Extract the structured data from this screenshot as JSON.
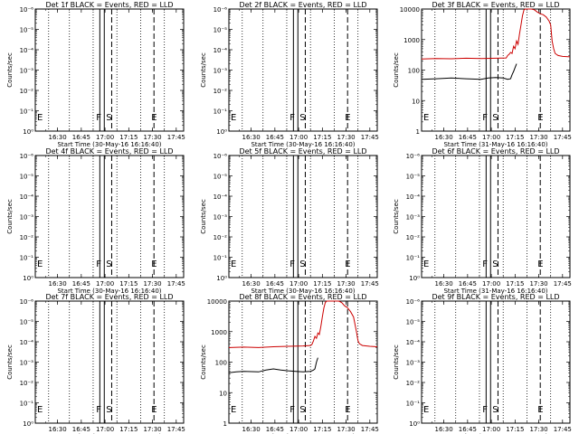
{
  "figure": {
    "background": "#ffffff",
    "event_color": "#000000",
    "lld_color": "#cc0000"
  },
  "chart_data": [
    {
      "type": "line",
      "title": "Det 1f BLACK = Events, RED = LLD",
      "ylabel": "Counts/sec",
      "xlabel": "Start Time (30-May-16 16:16:40)",
      "x_ticks": [
        "16:30",
        "16:45",
        "17:00",
        "17:15",
        "17:30",
        "17:45"
      ],
      "y_ticks": [
        "10⁰",
        "10⁻¹",
        "10⁻²",
        "10⁻³",
        "10⁻⁴",
        "10⁻⁵",
        "10⁻⁶"
      ],
      "y_scale": "log",
      "ylim": [
        1e-06,
        1
      ],
      "markers": {
        "E1": "E",
        "F": "F",
        "S": "S",
        "E2": "E"
      },
      "series": []
    },
    {
      "type": "line",
      "title": "Det 2f BLACK = Events, RED = LLD",
      "ylabel": "Counts/sec",
      "xlabel": "Start Time (30-May-16 16:16:40)",
      "x_ticks": [
        "16:30",
        "16:45",
        "17:00",
        "17:15",
        "17:30",
        "17:45"
      ],
      "y_ticks": [
        "10⁰",
        "10⁻¹",
        "10⁻²",
        "10⁻³",
        "10⁻⁴",
        "10⁻⁵",
        "10⁻⁶"
      ],
      "y_scale": "log",
      "ylim": [
        1e-06,
        1
      ],
      "markers": {
        "E1": "E",
        "F": "F",
        "S": "S",
        "E2": "E"
      },
      "series": []
    },
    {
      "type": "line",
      "title": "Det 3f BLACK = Events, RED = LLD",
      "ylabel": "Counts/sec",
      "xlabel": "Start Time (31-May-16 16:16:40)",
      "x_ticks": [
        "16:30",
        "16:45",
        "17:00",
        "17:15",
        "17:30",
        "17:45"
      ],
      "y_ticks": [
        "1",
        "10",
        "100",
        "1000",
        "10000"
      ],
      "y_scale": "log",
      "ylim": [
        1,
        10000
      ],
      "markers": {
        "E1": "E",
        "F": "F",
        "S": "S",
        "E2": "E"
      },
      "series": [
        {
          "color": "#000000",
          "points": [
            [
              0,
              50
            ],
            [
              10,
              52
            ],
            [
              20,
              55
            ],
            [
              30,
              52
            ],
            [
              40,
              50
            ],
            [
              45,
              55
            ],
            [
              50,
              57
            ],
            [
              55,
              55
            ],
            [
              58,
              50
            ],
            [
              60,
              52
            ],
            [
              61,
              70
            ],
            [
              62,
              90
            ],
            [
              63,
              120
            ],
            [
              64,
              160
            ]
          ]
        },
        {
          "color": "#cc0000",
          "points": [
            [
              0,
              230
            ],
            [
              10,
              240
            ],
            [
              20,
              235
            ],
            [
              30,
              245
            ],
            [
              40,
              240
            ],
            [
              50,
              245
            ],
            [
              57,
              250
            ],
            [
              58,
              300
            ],
            [
              59,
              330
            ],
            [
              60,
              380
            ],
            [
              61,
              350
            ],
            [
              62,
              600
            ],
            [
              63,
              500
            ],
            [
              64,
              900
            ],
            [
              65,
              700
            ],
            [
              66,
              1500
            ],
            [
              67,
              3000
            ],
            [
              68,
              6000
            ],
            [
              69,
              9500
            ],
            [
              70,
              10000
            ],
            [
              72,
              10000
            ],
            [
              74,
              10000
            ],
            [
              76,
              9500
            ],
            [
              78,
              8000
            ],
            [
              80,
              7000
            ],
            [
              82,
              6500
            ],
            [
              84,
              5500
            ],
            [
              86,
              4000
            ],
            [
              87,
              3000
            ],
            [
              88,
              900
            ],
            [
              89,
              500
            ],
            [
              90,
              350
            ],
            [
              92,
              300
            ],
            [
              95,
              280
            ],
            [
              100,
              270
            ]
          ]
        }
      ]
    },
    {
      "type": "line",
      "title": "Det 4f BLACK = Events, RED = LLD",
      "ylabel": "Counts/sec",
      "xlabel": "Start Time (30-May-16 16:16:40)",
      "x_ticks": [
        "16:30",
        "16:45",
        "17:00",
        "17:15",
        "17:30",
        "17:45"
      ],
      "y_ticks": [
        "10⁰",
        "10⁻¹",
        "10⁻²",
        "10⁻³",
        "10⁻⁴",
        "10⁻⁵",
        "10⁻⁶"
      ],
      "y_scale": "log",
      "ylim": [
        1e-06,
        1
      ],
      "markers": {
        "E1": "E",
        "F": "F",
        "S": "S",
        "E2": "E"
      },
      "series": []
    },
    {
      "type": "line",
      "title": "Det 5f BLACK = Events, RED = LLD",
      "ylabel": "Counts/sec",
      "xlabel": "Start Time (30-May-16 16:16:40)",
      "x_ticks": [
        "16:30",
        "16:45",
        "17:00",
        "17:15",
        "17:30",
        "17:45"
      ],
      "y_ticks": [
        "10⁰",
        "10⁻¹",
        "10⁻²",
        "10⁻³",
        "10⁻⁴",
        "10⁻⁵",
        "10⁻⁶"
      ],
      "y_scale": "log",
      "ylim": [
        1e-06,
        1
      ],
      "markers": {
        "E1": "E",
        "F": "F",
        "S": "S",
        "E2": "E"
      },
      "series": []
    },
    {
      "type": "line",
      "title": "Det 6f BLACK = Events, RED = LLD",
      "ylabel": "Counts/sec",
      "xlabel": "Start Time (31-May-16 16:16:40)",
      "x_ticks": [
        "16:30",
        "16:45",
        "17:00",
        "17:15",
        "17:30",
        "17:45"
      ],
      "y_ticks": [
        "10⁰",
        "10⁻¹",
        "10⁻²",
        "10⁻³",
        "10⁻⁴",
        "10⁻⁵",
        "10⁻⁶"
      ],
      "y_scale": "log",
      "ylim": [
        1e-06,
        1
      ],
      "markers": {
        "E1": "E",
        "F": "F",
        "S": "S",
        "E2": "E"
      },
      "series": []
    },
    {
      "type": "line",
      "title": "Det 7f BLACK = Events, RED = LLD",
      "ylabel": "Counts/sec",
      "xlabel": "Start Time (30-May-16 16:16:40)",
      "x_ticks": [
        "16:30",
        "16:45",
        "17:00",
        "17:15",
        "17:30",
        "17:45"
      ],
      "y_ticks": [
        "10⁰",
        "10⁻¹",
        "10⁻²",
        "10⁻³",
        "10⁻⁴",
        "10⁻⁵",
        "10⁻⁶"
      ],
      "y_scale": "log",
      "ylim": [
        1e-06,
        1
      ],
      "markers": {
        "E1": "E",
        "F": "F",
        "S": "S",
        "E2": "E"
      },
      "series": []
    },
    {
      "type": "line",
      "title": "Det 8f BLACK = Events, RED = LLD",
      "ylabel": "Counts/sec",
      "xlabel": "Start Time (30-May-16 16:16:40)",
      "x_ticks": [
        "16:30",
        "16:45",
        "17:00",
        "17:15",
        "17:30",
        "17:45"
      ],
      "y_ticks": [
        "1",
        "10",
        "100",
        "1000",
        "10000"
      ],
      "y_scale": "log",
      "ylim": [
        1,
        10000
      ],
      "markers": {
        "E1": "E",
        "F": "F",
        "S": "S",
        "E2": "E"
      },
      "series": [
        {
          "color": "#000000",
          "points": [
            [
              0,
              45
            ],
            [
              5,
              48
            ],
            [
              10,
              50
            ],
            [
              20,
              48
            ],
            [
              25,
              55
            ],
            [
              30,
              60
            ],
            [
              35,
              55
            ],
            [
              40,
              52
            ],
            [
              45,
              50
            ],
            [
              50,
              48
            ],
            [
              55,
              50
            ],
            [
              57,
              55
            ],
            [
              58,
              60
            ],
            [
              59,
              100
            ],
            [
              60,
              140
            ]
          ]
        },
        {
          "color": "#cc0000",
          "points": [
            [
              0,
              300
            ],
            [
              10,
              310
            ],
            [
              20,
              300
            ],
            [
              30,
              320
            ],
            [
              40,
              330
            ],
            [
              50,
              340
            ],
            [
              55,
              350
            ],
            [
              56,
              380
            ],
            [
              57,
              500
            ],
            [
              58,
              700
            ],
            [
              59,
              600
            ],
            [
              60,
              900
            ],
            [
              61,
              800
            ],
            [
              62,
              1500
            ],
            [
              63,
              3000
            ],
            [
              64,
              6000
            ],
            [
              65,
              9000
            ],
            [
              66,
              10000
            ],
            [
              70,
              10000
            ],
            [
              74,
              10000
            ],
            [
              76,
              9000
            ],
            [
              78,
              7000
            ],
            [
              80,
              6000
            ],
            [
              82,
              4500
            ],
            [
              84,
              3000
            ],
            [
              86,
              1000
            ],
            [
              87,
              500
            ],
            [
              88,
              400
            ],
            [
              90,
              350
            ],
            [
              95,
              330
            ],
            [
              100,
              320
            ]
          ]
        }
      ]
    },
    {
      "type": "line",
      "title": "Det 9f BLACK = Events, RED = LLD",
      "ylabel": "Counts/sec",
      "xlabel": "Start Time (31-May-16 16:16:40)",
      "x_ticks": [
        "16:30",
        "16:45",
        "17:00",
        "17:15",
        "17:30",
        "17:45"
      ],
      "y_ticks": [
        "10⁰",
        "10⁻¹",
        "10⁻²",
        "10⁻³",
        "10⁻⁴",
        "10⁻⁵",
        "10⁻⁶"
      ],
      "y_scale": "log",
      "ylim": [
        1e-06,
        1
      ],
      "markers": {
        "E1": "E",
        "F": "F",
        "S": "S",
        "E2": "E"
      },
      "series": []
    }
  ]
}
